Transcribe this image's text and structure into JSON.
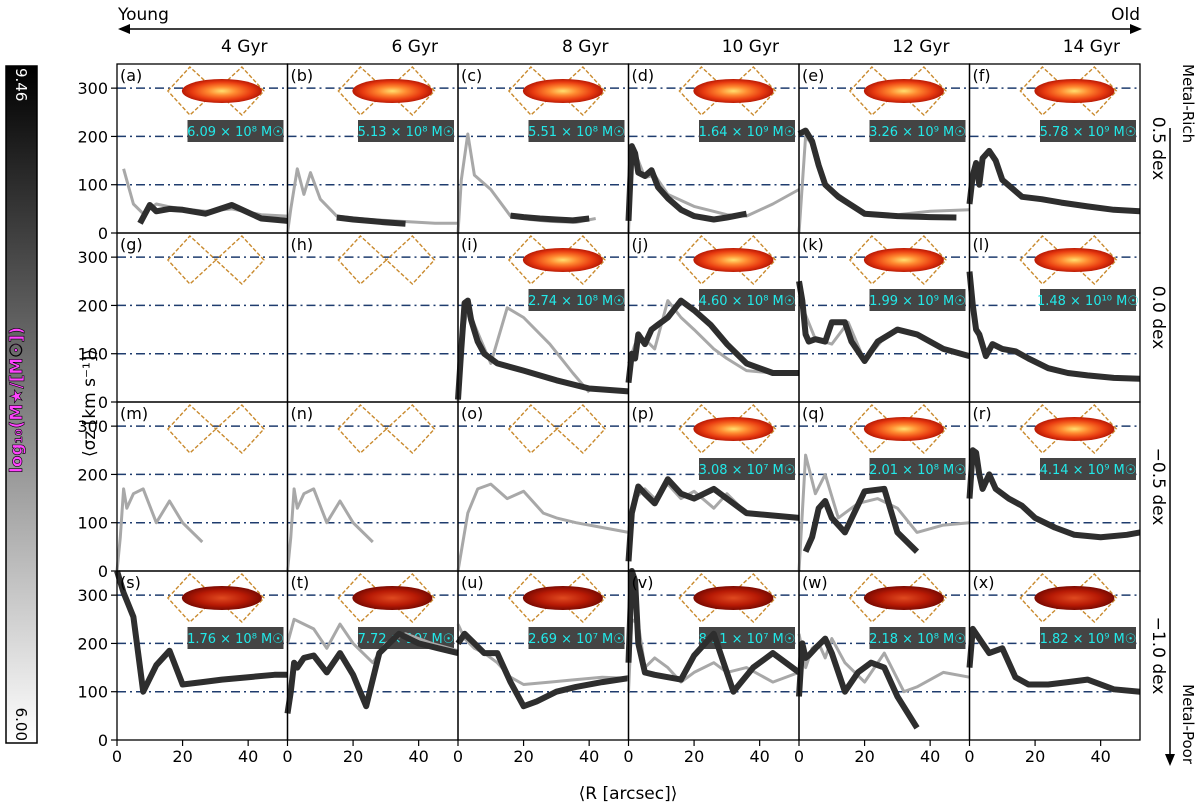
{
  "figure": {
    "age_axis": {
      "young": "Young",
      "old": "Old"
    },
    "metal_axis": {
      "rich": "Metal-Rich",
      "poor": "Metal-Poor"
    },
    "colorbar": {
      "label": "log₁₀(M★/[M☉])",
      "max": "9.46",
      "min": "6.00",
      "accent": "#ff44ff"
    },
    "xlabel": "⟨R [arcsec]⟩",
    "ylabel": "⟨σz [km s⁻¹]⟩",
    "colors": {
      "ref_line": "#1f3c6e",
      "diamond": "#c98a2e",
      "badge_bg": "#444444",
      "badge_text": "#22e8e8"
    }
  },
  "chart_data": {
    "type": "line",
    "title": "",
    "xlabel": "⟨R [arcsec]⟩",
    "ylabel": "⟨σz [km s⁻¹]⟩",
    "xlim": [
      0,
      52
    ],
    "ylim": [
      0,
      350
    ],
    "xticks": [
      0,
      20,
      40
    ],
    "yticks": [
      0,
      100,
      200,
      300
    ],
    "reference_lines": [
      100,
      200,
      300
    ],
    "columns": [
      "4 Gyr",
      "6 Gyr",
      "8 Gyr",
      "10 Gyr",
      "12 Gyr",
      "14 Gyr"
    ],
    "rows": [
      "0.5 dex",
      "0.0 dex",
      "−0.5 dex",
      "−1.0 dex"
    ],
    "panels": [
      {
        "label": "(a)",
        "mass": "6.09 × 10⁸ M☉",
        "light": {
          "x": [
            2,
            5,
            8,
            12,
            16,
            20,
            27,
            35,
            44,
            52
          ],
          "y": [
            133,
            60,
            40,
            60,
            54,
            50,
            45,
            50,
            38,
            35
          ]
        },
        "dark": {
          "x": [
            7,
            10,
            12,
            16,
            20,
            27,
            35,
            44,
            52
          ],
          "y": [
            20,
            58,
            45,
            50,
            48,
            40,
            58,
            30,
            25
          ]
        }
      },
      {
        "label": "(b)",
        "mass": "5.13 × 10⁸ M☉",
        "light": {
          "x": [
            0,
            1,
            3,
            5,
            7,
            10,
            15,
            25,
            35,
            45,
            52
          ],
          "y": [
            0,
            50,
            133,
            80,
            125,
            70,
            35,
            28,
            24,
            20,
            20
          ]
        },
        "dark": {
          "x": [
            15,
            20,
            25,
            30,
            36
          ],
          "y": [
            32,
            28,
            25,
            22,
            19
          ]
        }
      },
      {
        "label": "(c)",
        "mass": "5.51 × 10⁸ M☉",
        "light": {
          "x": [
            0,
            1,
            3,
            5,
            10,
            16,
            22,
            28,
            36,
            42
          ],
          "y": [
            0,
            110,
            205,
            120,
            90,
            35,
            28,
            24,
            22,
            30
          ]
        },
        "dark": {
          "x": [
            16,
            20,
            25,
            30,
            35,
            40
          ],
          "y": [
            36,
            33,
            30,
            28,
            26,
            30
          ]
        }
      },
      {
        "label": "(d)",
        "mass": "1.64 × 10⁹ M☉",
        "light": {
          "x": [
            0,
            1,
            3,
            5,
            8,
            12,
            20,
            30,
            36,
            44,
            52
          ],
          "y": [
            0,
            175,
            150,
            115,
            120,
            80,
            55,
            38,
            35,
            60,
            90
          ]
        },
        "dark": {
          "x": [
            0,
            1,
            2,
            3,
            5,
            7,
            9,
            12,
            16,
            20,
            26,
            30,
            36
          ],
          "y": [
            25,
            180,
            165,
            125,
            118,
            130,
            95,
            72,
            48,
            35,
            28,
            32,
            40
          ]
        }
      },
      {
        "label": "(e)",
        "mass": "3.26 × 10⁹ M☉",
        "light": {
          "x": [
            0,
            2,
            5,
            8,
            12,
            20,
            30,
            40,
            52
          ],
          "y": [
            0,
            200,
            175,
            100,
            80,
            40,
            38,
            45,
            48
          ]
        },
        "dark": {
          "x": [
            0,
            2,
            4,
            6,
            8,
            12,
            20,
            30,
            40,
            48
          ],
          "y": [
            205,
            212,
            190,
            140,
            100,
            75,
            40,
            35,
            33,
            32
          ]
        }
      },
      {
        "label": "(f)",
        "mass": "5.78 × 10⁹ M☉",
        "light": null,
        "dark": {
          "x": [
            0,
            1,
            2,
            3,
            4,
            6,
            8,
            10,
            16,
            22,
            28,
            36,
            44,
            52
          ],
          "y": [
            60,
            120,
            145,
            100,
            155,
            170,
            150,
            110,
            75,
            70,
            63,
            55,
            48,
            45
          ]
        }
      },
      {
        "label": "(g)",
        "mass": "",
        "light": null,
        "dark": null
      },
      {
        "label": "(h)",
        "mass": "",
        "light": null,
        "dark": null
      },
      {
        "label": "(i)",
        "mass": "2.74 × 10⁸ M☉",
        "light": {
          "x": [
            0,
            1,
            3,
            5,
            10,
            15,
            20,
            28,
            35,
            40
          ],
          "y": [
            0,
            120,
            200,
            160,
            80,
            195,
            175,
            120,
            60,
            20
          ]
        },
        "dark": {
          "x": [
            0,
            1,
            2,
            3,
            4,
            6,
            8,
            12,
            20,
            30,
            40,
            52
          ],
          "y": [
            5,
            110,
            205,
            210,
            170,
            125,
            100,
            80,
            65,
            45,
            28,
            22
          ]
        }
      },
      {
        "label": "(j)",
        "mass": "4.60 × 10⁸ M☉",
        "light": {
          "x": [
            0,
            2,
            5,
            8,
            12,
            16,
            20,
            26,
            30,
            36,
            44,
            52
          ],
          "y": [
            80,
            120,
            130,
            110,
            210,
            175,
            150,
            110,
            90,
            65,
            60,
            58
          ]
        },
        "dark": {
          "x": [
            0,
            1,
            2,
            3,
            5,
            7,
            9,
            12,
            16,
            20,
            25,
            30,
            36,
            44,
            52
          ],
          "y": [
            40,
            100,
            90,
            140,
            120,
            150,
            160,
            175,
            210,
            190,
            160,
            120,
            80,
            60,
            60
          ]
        }
      },
      {
        "label": "(k)",
        "mass": "1.99 × 10⁹ M☉",
        "light": {
          "x": [
            0,
            2,
            5,
            10,
            15,
            20,
            25,
            30,
            36,
            44,
            52
          ],
          "y": [
            220,
            180,
            130,
            120,
            165,
            85,
            125,
            150,
            140,
            110,
            95
          ]
        },
        "dark": {
          "x": [
            0,
            1,
            2,
            3,
            5,
            8,
            10,
            14,
            16,
            20,
            24,
            30,
            36,
            44,
            52
          ],
          "y": [
            250,
            210,
            140,
            125,
            130,
            125,
            165,
            165,
            125,
            85,
            125,
            150,
            140,
            110,
            95
          ]
        }
      },
      {
        "label": "(l)",
        "mass": "1.48 × 10¹⁰ M☉",
        "light": null,
        "dark": {
          "x": [
            0,
            1,
            2,
            3,
            5,
            7,
            10,
            14,
            18,
            24,
            30,
            36,
            44,
            52
          ],
          "y": [
            270,
            200,
            150,
            140,
            95,
            120,
            110,
            105,
            90,
            70,
            60,
            55,
            50,
            48
          ]
        }
      },
      {
        "label": "(m)",
        "mass": "",
        "light": {
          "x": [
            0,
            1,
            2,
            3,
            5,
            8,
            12,
            16,
            20,
            26
          ],
          "y": [
            0,
            70,
            170,
            130,
            160,
            170,
            100,
            145,
            100,
            60
          ]
        },
        "dark": null
      },
      {
        "label": "(n)",
        "mass": "",
        "light": {
          "x": [
            0,
            1,
            2,
            3,
            5,
            8,
            12,
            16,
            20,
            26
          ],
          "y": [
            0,
            70,
            170,
            130,
            160,
            170,
            100,
            145,
            100,
            60
          ]
        },
        "dark": null
      },
      {
        "label": "(o)",
        "mass": "",
        "light": {
          "x": [
            0,
            3,
            6,
            10,
            15,
            20,
            26,
            30,
            36,
            44,
            52
          ],
          "y": [
            0,
            120,
            170,
            180,
            150,
            165,
            120,
            110,
            100,
            90,
            80
          ]
        },
        "dark": null
      },
      {
        "label": "(p)",
        "mass": "3.08 × 10⁷ M☉",
        "light": {
          "x": [
            0,
            2,
            5,
            8,
            12,
            16,
            20,
            26,
            30,
            36,
            44,
            52
          ],
          "y": [
            50,
            150,
            170,
            150,
            180,
            150,
            165,
            130,
            160,
            120,
            115,
            110
          ]
        },
        "dark": {
          "x": [
            0,
            1,
            3,
            5,
            8,
            12,
            16,
            20,
            26,
            30,
            36,
            44,
            52
          ],
          "y": [
            20,
            120,
            175,
            160,
            140,
            190,
            160,
            150,
            170,
            150,
            120,
            115,
            110
          ]
        }
      },
      {
        "label": "(q)",
        "mass": "2.01 × 10⁸ M☉",
        "light": {
          "x": [
            0,
            2,
            5,
            8,
            12,
            18,
            24,
            30,
            36,
            44,
            52
          ],
          "y": [
            0,
            240,
            160,
            200,
            110,
            140,
            150,
            130,
            80,
            95,
            100
          ]
        },
        "dark": {
          "x": [
            2,
            4,
            6,
            8,
            10,
            14,
            20,
            26,
            30,
            36
          ],
          "y": [
            40,
            70,
            130,
            145,
            110,
            80,
            165,
            170,
            80,
            40
          ]
        }
      },
      {
        "label": "(r)",
        "mass": "4.14 × 10⁹ M☉",
        "light": null,
        "dark": {
          "x": [
            0,
            1,
            2,
            3,
            4,
            6,
            8,
            12,
            16,
            20,
            26,
            32,
            40,
            48,
            52
          ],
          "y": [
            150,
            250,
            245,
            200,
            170,
            200,
            170,
            150,
            135,
            110,
            90,
            75,
            70,
            75,
            80
          ]
        }
      },
      {
        "label": "(s)",
        "mass": "1.76 × 10⁸ M☉",
        "light": null,
        "dark": {
          "x": [
            0,
            2,
            5,
            8,
            12,
            16,
            20,
            26,
            32,
            40,
            48,
            52
          ],
          "y": [
            350,
            305,
            255,
            100,
            155,
            185,
            115,
            120,
            125,
            130,
            135,
            135
          ]
        }
      },
      {
        "label": "(t)",
        "mass": "7.72 × 10⁷ M☉",
        "light": {
          "x": [
            0,
            2,
            5,
            8,
            12,
            16,
            20,
            26,
            30,
            36,
            44,
            52
          ],
          "y": [
            200,
            250,
            240,
            230,
            190,
            240,
            200,
            160,
            200,
            220,
            200,
            185
          ]
        },
        "dark": {
          "x": [
            0,
            1,
            2,
            3,
            5,
            8,
            12,
            16,
            20,
            24,
            28,
            34,
            40,
            46,
            52
          ],
          "y": [
            55,
            100,
            160,
            150,
            170,
            175,
            140,
            180,
            135,
            70,
            180,
            220,
            200,
            190,
            180
          ]
        }
      },
      {
        "label": "(u)",
        "mass": "2.69 × 10⁷ M☉",
        "light": {
          "x": [
            0,
            2,
            5,
            8,
            12,
            16,
            20,
            28,
            36,
            44,
            52
          ],
          "y": [
            240,
            210,
            190,
            180,
            160,
            130,
            115,
            120,
            125,
            130,
            128
          ]
        },
        "dark": {
          "x": [
            0,
            2,
            5,
            8,
            12,
            16,
            20,
            24,
            30,
            36,
            44,
            52
          ],
          "y": [
            200,
            220,
            200,
            180,
            180,
            120,
            70,
            80,
            100,
            110,
            120,
            128
          ]
        }
      },
      {
        "label": "(v)",
        "mass": "8.11 × 10⁷ M☉",
        "light": {
          "x": [
            0,
            1,
            3,
            5,
            8,
            12,
            16,
            20,
            26,
            30,
            36,
            44,
            52
          ],
          "y": [
            100,
            250,
            240,
            150,
            170,
            150,
            120,
            140,
            160,
            140,
            150,
            120,
            140
          ]
        },
        "dark": {
          "x": [
            0,
            1,
            2,
            3,
            5,
            8,
            12,
            16,
            20,
            26,
            32,
            38,
            44,
            52
          ],
          "y": [
            160,
            350,
            330,
            200,
            140,
            135,
            130,
            125,
            175,
            220,
            100,
            150,
            180,
            140
          ]
        }
      },
      {
        "label": "(w)",
        "mass": "2.18 × 10⁸ M☉",
        "light": {
          "x": [
            0,
            2,
            4,
            6,
            8,
            10,
            14,
            20,
            26,
            32,
            36,
            44,
            52
          ],
          "y": [
            220,
            150,
            190,
            200,
            170,
            210,
            160,
            120,
            180,
            100,
            110,
            140,
            130
          ]
        },
        "dark": {
          "x": [
            0,
            1,
            2,
            3,
            5,
            8,
            10,
            14,
            18,
            22,
            26,
            30,
            36
          ],
          "y": [
            90,
            200,
            170,
            175,
            190,
            210,
            180,
            100,
            140,
            160,
            150,
            90,
            25
          ]
        }
      },
      {
        "label": "(x)",
        "mass": "1.82 × 10⁹ M☉",
        "light": null,
        "dark": {
          "x": [
            0,
            1,
            2,
            4,
            6,
            8,
            10,
            14,
            18,
            24,
            30,
            36,
            44,
            52
          ],
          "y": [
            150,
            230,
            220,
            200,
            180,
            185,
            190,
            130,
            115,
            115,
            120,
            125,
            105,
            100
          ]
        }
      }
    ]
  }
}
